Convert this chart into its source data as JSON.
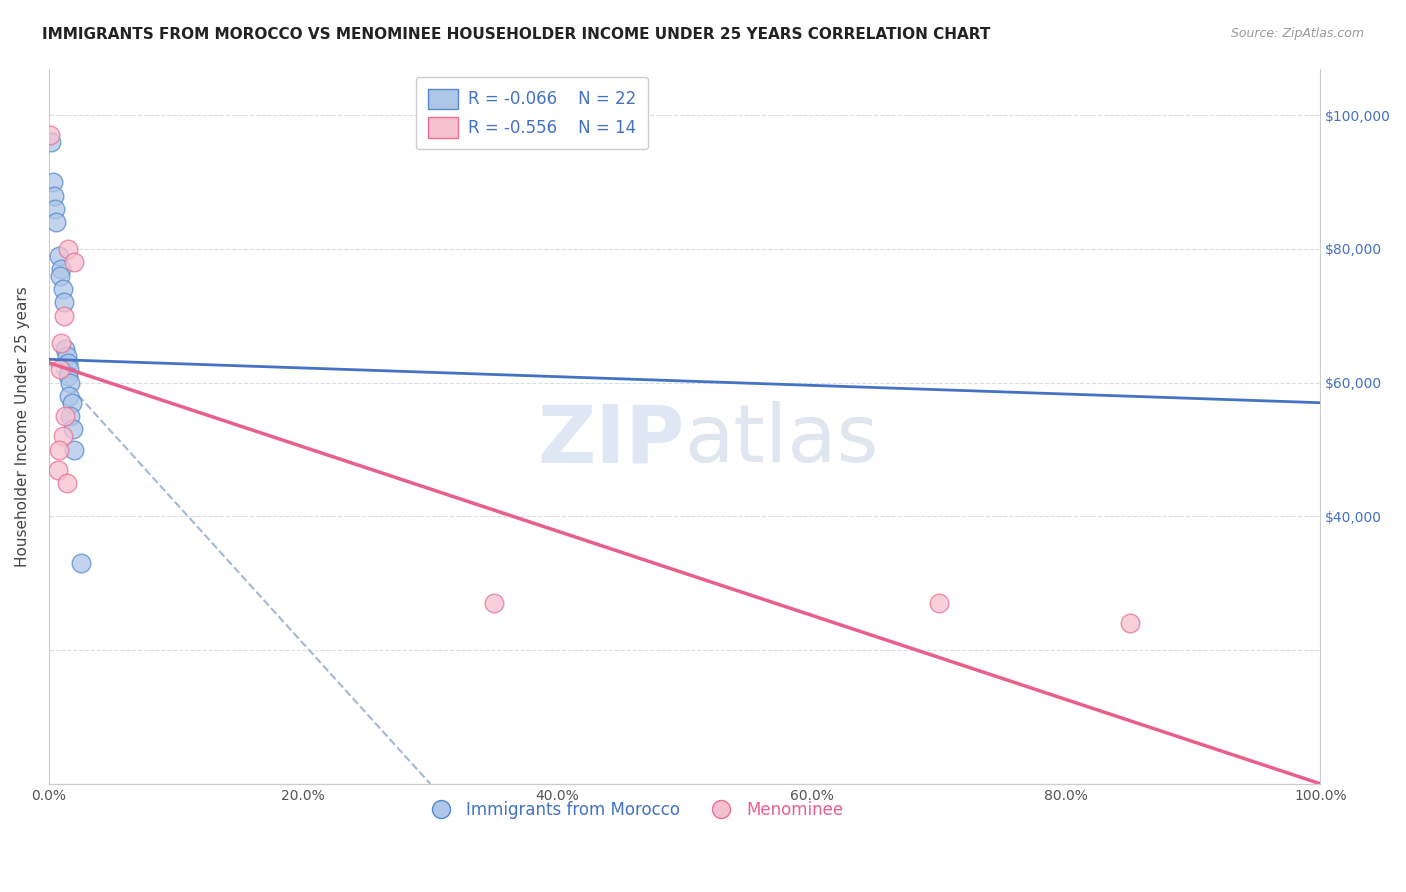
{
  "title": "IMMIGRANTS FROM MOROCCO VS MENOMINEE HOUSEHOLDER INCOME UNDER 25 YEARS CORRELATION CHART",
  "source": "Source: ZipAtlas.com",
  "ylabel": "Householder Income Under 25 years",
  "x_min": 0.0,
  "x_max": 100.0,
  "y_min": 0,
  "y_max": 107000,
  "x_tick_vals": [
    0,
    20,
    40,
    60,
    80,
    100
  ],
  "x_tick_labels": [
    "0.0%",
    "20.0%",
    "40.0%",
    "60.0%",
    "80.0%",
    "100.0%"
  ],
  "y_tick_vals": [
    0,
    20000,
    40000,
    60000,
    80000,
    100000
  ],
  "y_right_labels": [
    "",
    "",
    "$40,000",
    "$60,000",
    "$80,000",
    "$100,000"
  ],
  "watermark_zip": "ZIP",
  "watermark_atlas": "atlas",
  "legend_r1": "R = -0.066",
  "legend_n1": "N = 22",
  "legend_r2": "R = -0.556",
  "legend_n2": "N = 14",
  "blue_face": "#aec6e8",
  "blue_edge": "#5588cc",
  "pink_face": "#f7c0d0",
  "pink_edge": "#e87090",
  "blue_line_color": "#4472c4",
  "pink_line_color": "#e8608a",
  "dash_line_color": "#9ab0d0",
  "title_fontsize": 11,
  "axis_label_fontsize": 11,
  "tick_fontsize": 10,
  "right_tick_color": "#4472c4",
  "background_color": "#ffffff",
  "grid_color": "#d8dce8",
  "blue_scatter": [
    [
      0.15,
      96000
    ],
    [
      0.35,
      90000
    ],
    [
      0.45,
      88000
    ],
    [
      0.5,
      86000
    ],
    [
      0.55,
      84000
    ],
    [
      0.8,
      79000
    ],
    [
      1.0,
      77000
    ],
    [
      0.9,
      76000
    ],
    [
      1.1,
      74000
    ],
    [
      1.2,
      72000
    ],
    [
      1.3,
      65000
    ],
    [
      1.4,
      64000
    ],
    [
      1.5,
      63000
    ],
    [
      1.6,
      62000
    ],
    [
      1.5,
      61000
    ],
    [
      1.7,
      60000
    ],
    [
      1.6,
      58000
    ],
    [
      1.8,
      57000
    ],
    [
      1.7,
      55000
    ],
    [
      1.9,
      53000
    ],
    [
      2.0,
      50000
    ],
    [
      2.5,
      33000
    ]
  ],
  "pink_scatter": [
    [
      0.1,
      97000
    ],
    [
      1.5,
      80000
    ],
    [
      2.0,
      78000
    ],
    [
      1.2,
      70000
    ],
    [
      1.0,
      66000
    ],
    [
      0.9,
      62000
    ],
    [
      1.3,
      55000
    ],
    [
      1.1,
      52000
    ],
    [
      0.8,
      50000
    ],
    [
      0.7,
      47000
    ],
    [
      1.4,
      45000
    ],
    [
      35.0,
      27000
    ],
    [
      70.0,
      27000
    ],
    [
      85.0,
      24000
    ]
  ],
  "blue_trend": [
    0.0,
    100.0,
    63500,
    57000
  ],
  "pink_trend": [
    0.0,
    100.0,
    63000,
    0
  ],
  "dash_trend": [
    0.0,
    30.0,
    63000,
    0
  ]
}
